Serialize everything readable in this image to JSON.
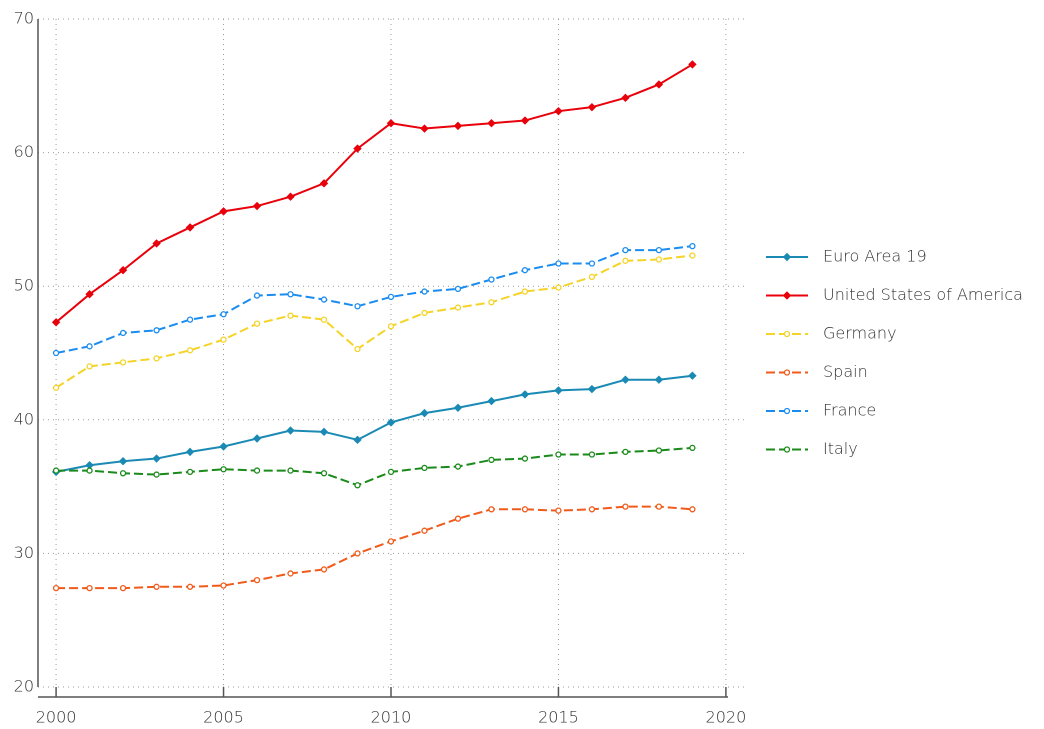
{
  "chart_data": {
    "type": "line",
    "x": [
      2000,
      2001,
      2002,
      2003,
      2004,
      2005,
      2006,
      2007,
      2008,
      2009,
      2010,
      2011,
      2012,
      2013,
      2014,
      2015,
      2016,
      2017,
      2018,
      2019
    ],
    "xlim": [
      1999.46,
      2020.66
    ],
    "xticks": [
      2000,
      2005,
      2010,
      2015,
      2020
    ],
    "ylim": [
      20,
      70
    ],
    "yticks": [
      20,
      30,
      40,
      50,
      60,
      70
    ],
    "grid": true,
    "legend": "right",
    "series": [
      {
        "name": "Euro Area 19",
        "color": "#1a8ab4",
        "line_style": "solid",
        "marker": "diamond",
        "values": [
          36.1,
          36.6,
          36.9,
          37.1,
          37.6,
          38.0,
          38.6,
          39.2,
          39.1,
          38.5,
          39.8,
          40.5,
          40.9,
          41.4,
          41.9,
          42.2,
          42.3,
          43.0,
          43.0,
          43.3
        ]
      },
      {
        "name": "United States of America",
        "color": "#e8000b",
        "line_style": "solid",
        "marker": "diamond",
        "values": [
          47.3,
          49.4,
          51.2,
          53.2,
          54.4,
          55.6,
          56.0,
          56.7,
          57.7,
          60.3,
          62.2,
          61.8,
          62.0,
          62.2,
          62.4,
          63.1,
          63.4,
          64.1,
          65.1,
          66.6
        ]
      },
      {
        "name": "Germany",
        "color": "#f5d327",
        "line_style": "dashed",
        "marker": "open-circle",
        "values": [
          42.4,
          44.0,
          44.3,
          44.6,
          45.2,
          46.0,
          47.2,
          47.8,
          47.5,
          45.3,
          47.0,
          48.0,
          48.4,
          48.8,
          49.6,
          49.9,
          50.7,
          51.9,
          52.0,
          52.3
        ]
      },
      {
        "name": "Spain",
        "color": "#f05a1a",
        "line_style": "dashed",
        "marker": "open-circle",
        "values": [
          27.4,
          27.4,
          27.4,
          27.5,
          27.5,
          27.6,
          28.0,
          28.5,
          28.8,
          30.0,
          30.9,
          31.7,
          32.6,
          33.3,
          33.3,
          33.2,
          33.3,
          33.5,
          33.5,
          33.3
        ]
      },
      {
        "name": "France",
        "color": "#1a8cf0",
        "line_style": "dashed",
        "marker": "open-circle",
        "values": [
          45.0,
          45.5,
          46.5,
          46.7,
          47.5,
          47.9,
          49.3,
          49.4,
          49.0,
          48.5,
          49.2,
          49.6,
          49.8,
          50.5,
          51.2,
          51.7,
          51.7,
          52.7,
          52.7,
          53.0
        ]
      },
      {
        "name": "Italy",
        "color": "#1a8a1a",
        "line_style": "dashed",
        "marker": "open-circle",
        "values": [
          36.2,
          36.2,
          36.0,
          35.9,
          36.1,
          36.3,
          36.2,
          36.2,
          36.0,
          35.1,
          36.1,
          36.4,
          36.5,
          37.0,
          37.1,
          37.4,
          37.4,
          37.6,
          37.7,
          37.9
        ]
      }
    ]
  }
}
